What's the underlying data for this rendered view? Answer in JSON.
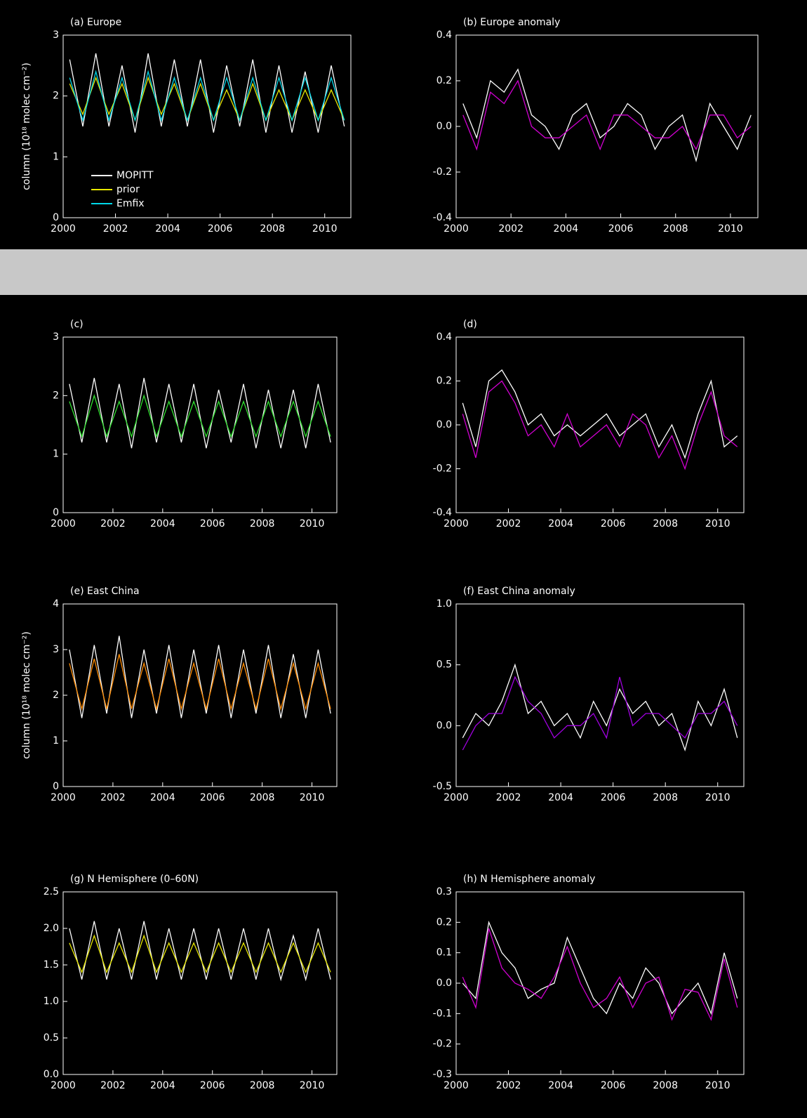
{
  "chart_data": [
    {
      "type": "line",
      "title": "(a) Europe",
      "ylabel": "column (10¹⁸ molec cm⁻²)",
      "xlim": [
        2000,
        2011
      ],
      "xticks": [
        2000,
        2002,
        2004,
        2006,
        2008,
        2010
      ],
      "ylim": [
        0,
        3
      ],
      "yticks": [
        0,
        1,
        2,
        3
      ],
      "x": [
        2000.25,
        2000.75,
        2001.25,
        2001.75,
        2002.25,
        2002.75,
        2003.25,
        2003.75,
        2004.25,
        2004.75,
        2005.25,
        2005.75,
        2006.25,
        2006.75,
        2007.25,
        2007.75,
        2008.25,
        2008.75,
        2009.25,
        2009.75,
        2010.25,
        2010.75
      ],
      "series": [
        {
          "name": "MOPITT",
          "color": "#ffffff",
          "values": [
            2.6,
            1.5,
            2.7,
            1.5,
            2.5,
            1.4,
            2.7,
            1.5,
            2.6,
            1.5,
            2.6,
            1.4,
            2.5,
            1.5,
            2.6,
            1.4,
            2.5,
            1.4,
            2.4,
            1.4,
            2.5,
            1.5
          ]
        },
        {
          "name": "prior",
          "color": "#e8e800",
          "values": [
            2.2,
            1.7,
            2.3,
            1.7,
            2.2,
            1.6,
            2.3,
            1.7,
            2.2,
            1.6,
            2.2,
            1.6,
            2.1,
            1.6,
            2.2,
            1.6,
            2.1,
            1.6,
            2.1,
            1.6,
            2.1,
            1.6
          ]
        },
        {
          "name": "Emfix",
          "color": "#00d8e8",
          "values": [
            2.3,
            1.6,
            2.4,
            1.6,
            2.3,
            1.6,
            2.4,
            1.6,
            2.3,
            1.6,
            2.3,
            1.6,
            2.3,
            1.6,
            2.3,
            1.6,
            2.3,
            1.6,
            2.3,
            1.6,
            2.3,
            1.6
          ]
        }
      ]
    },
    {
      "type": "line",
      "title": "(b) Europe anomaly",
      "xlim": [
        2000,
        2011
      ],
      "xticks": [
        2000,
        2002,
        2004,
        2006,
        2008,
        2010
      ],
      "ylim": [
        -0.4,
        0.4
      ],
      "yticks": [
        -0.4,
        -0.2,
        {
          "value": 0,
          "label": "0.0"
        },
        0.2,
        0.4
      ],
      "x": [
        2000.25,
        2000.75,
        2001.25,
        2001.75,
        2002.25,
        2002.75,
        2003.25,
        2003.75,
        2004.25,
        2004.75,
        2005.25,
        2005.75,
        2006.25,
        2006.75,
        2007.25,
        2007.75,
        2008.25,
        2008.75,
        2009.25,
        2009.75,
        2010.25,
        2010.75
      ],
      "series": [
        {
          "color": "#ffffff",
          "values": [
            0.1,
            -0.05,
            0.2,
            0.15,
            0.25,
            0.05,
            0.0,
            -0.1,
            0.05,
            0.1,
            -0.05,
            0.0,
            0.1,
            0.05,
            -0.1,
            0.0,
            0.05,
            -0.15,
            0.1,
            0.0,
            -0.1,
            0.05
          ]
        },
        {
          "color": "#d000d0",
          "values": [
            0.05,
            -0.1,
            0.15,
            0.1,
            0.2,
            0.0,
            -0.05,
            -0.05,
            0.0,
            0.05,
            -0.1,
            0.05,
            0.05,
            0.0,
            -0.05,
            -0.05,
            0.0,
            -0.1,
            0.05,
            0.05,
            -0.05,
            0.0
          ]
        }
      ]
    },
    {
      "type": "line",
      "title": "(c)",
      "xlim": [
        2000,
        2011
      ],
      "xticks": [
        2000,
        2002,
        2004,
        2006,
        2008,
        2010
      ],
      "ylim": [
        0,
        3
      ],
      "yticks": [
        0,
        1,
        2,
        3
      ],
      "x": [
        2000.25,
        2000.75,
        2001.25,
        2001.75,
        2002.25,
        2002.75,
        2003.25,
        2003.75,
        2004.25,
        2004.75,
        2005.25,
        2005.75,
        2006.25,
        2006.75,
        2007.25,
        2007.75,
        2008.25,
        2008.75,
        2009.25,
        2009.75,
        2010.25,
        2010.75
      ],
      "series": [
        {
          "color": "#ffffff",
          "values": [
            2.2,
            1.2,
            2.3,
            1.2,
            2.2,
            1.1,
            2.3,
            1.2,
            2.2,
            1.2,
            2.2,
            1.1,
            2.1,
            1.2,
            2.2,
            1.1,
            2.1,
            1.1,
            2.1,
            1.1,
            2.2,
            1.2
          ]
        },
        {
          "color": "#30e030",
          "values": [
            1.9,
            1.3,
            2.0,
            1.3,
            1.9,
            1.3,
            2.0,
            1.3,
            1.9,
            1.3,
            1.9,
            1.3,
            1.9,
            1.3,
            1.9,
            1.3,
            1.9,
            1.3,
            1.9,
            1.3,
            1.9,
            1.3
          ]
        }
      ]
    },
    {
      "type": "line",
      "title": "(d)",
      "xlim": [
        2000,
        2011
      ],
      "xticks": [
        2000,
        2002,
        2004,
        2006,
        2008,
        2010
      ],
      "ylim": [
        -0.4,
        0.4
      ],
      "yticks": [
        -0.4,
        -0.2,
        {
          "value": 0,
          "label": "0.0"
        },
        0.2,
        0.4
      ],
      "x": [
        2000.25,
        2000.75,
        2001.25,
        2001.75,
        2002.25,
        2002.75,
        2003.25,
        2003.75,
        2004.25,
        2004.75,
        2005.25,
        2005.75,
        2006.25,
        2006.75,
        2007.25,
        2007.75,
        2008.25,
        2008.75,
        2009.25,
        2009.75,
        2010.25,
        2010.75
      ],
      "series": [
        {
          "color": "#ffffff",
          "values": [
            0.1,
            -0.1,
            0.2,
            0.25,
            0.15,
            0.0,
            0.05,
            -0.05,
            0.0,
            -0.05,
            0.0,
            0.05,
            -0.05,
            0.0,
            0.05,
            -0.1,
            0.0,
            -0.15,
            0.05,
            0.2,
            -0.1,
            -0.05
          ]
        },
        {
          "color": "#d000d0",
          "values": [
            0.05,
            -0.15,
            0.15,
            0.2,
            0.1,
            -0.05,
            0.0,
            -0.1,
            0.05,
            -0.1,
            -0.05,
            0.0,
            -0.1,
            0.05,
            0.0,
            -0.15,
            -0.05,
            -0.2,
            0.0,
            0.15,
            -0.05,
            -0.1
          ]
        }
      ]
    },
    {
      "type": "line",
      "title": "(e) East China",
      "ylabel": "column (10¹⁸ molec cm⁻²)",
      "xlim": [
        2000,
        2011
      ],
      "xticks": [
        2000,
        2002,
        2004,
        2006,
        2008,
        2010
      ],
      "ylim": [
        0,
        4
      ],
      "yticks": [
        0,
        1,
        2,
        3,
        4
      ],
      "x": [
        2000.25,
        2000.75,
        2001.25,
        2001.75,
        2002.25,
        2002.75,
        2003.25,
        2003.75,
        2004.25,
        2004.75,
        2005.25,
        2005.75,
        2006.25,
        2006.75,
        2007.25,
        2007.75,
        2008.25,
        2008.75,
        2009.25,
        2009.75,
        2010.25,
        2010.75
      ],
      "series": [
        {
          "color": "#ffffff",
          "values": [
            3.0,
            1.5,
            3.1,
            1.6,
            3.3,
            1.5,
            3.0,
            1.6,
            3.1,
            1.5,
            3.0,
            1.6,
            3.1,
            1.5,
            3.0,
            1.6,
            3.1,
            1.5,
            2.9,
            1.5,
            3.0,
            1.6
          ]
        },
        {
          "color": "#ff8c00",
          "values": [
            2.7,
            1.7,
            2.8,
            1.7,
            2.9,
            1.7,
            2.7,
            1.7,
            2.8,
            1.7,
            2.7,
            1.7,
            2.8,
            1.7,
            2.7,
            1.7,
            2.8,
            1.7,
            2.7,
            1.7,
            2.7,
            1.7
          ]
        }
      ]
    },
    {
      "type": "line",
      "title": "(f) East China anomaly",
      "xlim": [
        2000,
        2011
      ],
      "xticks": [
        2000,
        2002,
        2004,
        2006,
        2008,
        2010
      ],
      "ylim": [
        -0.5,
        1.0
      ],
      "yticks": [
        -0.5,
        {
          "value": 0,
          "label": "0.0"
        },
        0.5,
        {
          "value": 1,
          "label": "1.0"
        }
      ],
      "x": [
        2000.25,
        2000.75,
        2001.25,
        2001.75,
        2002.25,
        2002.75,
        2003.25,
        2003.75,
        2004.25,
        2004.75,
        2005.25,
        2005.75,
        2006.25,
        2006.75,
        2007.25,
        2007.75,
        2008.25,
        2008.75,
        2009.25,
        2009.75,
        2010.25,
        2010.75
      ],
      "series": [
        {
          "color": "#ffffff",
          "values": [
            -0.1,
            0.1,
            0.0,
            0.2,
            0.5,
            0.1,
            0.2,
            0.0,
            0.1,
            -0.1,
            0.2,
            0.0,
            0.3,
            0.1,
            0.2,
            0.0,
            0.1,
            -0.2,
            0.2,
            0.0,
            0.3,
            -0.1
          ]
        },
        {
          "color": "#a000e0",
          "values": [
            -0.2,
            0.0,
            0.1,
            0.1,
            0.4,
            0.2,
            0.1,
            -0.1,
            0.0,
            0.0,
            0.1,
            -0.1,
            0.4,
            0.0,
            0.1,
            0.1,
            0.0,
            -0.1,
            0.1,
            0.1,
            0.2,
            0.0
          ]
        }
      ]
    },
    {
      "type": "line",
      "title": "(g) N Hemisphere (0–60N)",
      "xlim": [
        2000,
        2011
      ],
      "xticks": [
        2000,
        2002,
        2004,
        2006,
        2008,
        2010
      ],
      "ylim": [
        0,
        2.5
      ],
      "yticks": [
        {
          "value": 0,
          "label": "0.0"
        },
        0.5,
        {
          "value": 1,
          "label": "1.0"
        },
        1.5,
        {
          "value": 2,
          "label": "2.0"
        },
        2.5
      ],
      "x": [
        2000.25,
        2000.75,
        2001.25,
        2001.75,
        2002.25,
        2002.75,
        2003.25,
        2003.75,
        2004.25,
        2004.75,
        2005.25,
        2005.75,
        2006.25,
        2006.75,
        2007.25,
        2007.75,
        2008.25,
        2008.75,
        2009.25,
        2009.75,
        2010.25,
        2010.75
      ],
      "series": [
        {
          "color": "#ffffff",
          "values": [
            2.0,
            1.3,
            2.1,
            1.3,
            2.0,
            1.3,
            2.1,
            1.3,
            2.0,
            1.3,
            2.0,
            1.3,
            2.0,
            1.3,
            2.0,
            1.3,
            2.0,
            1.3,
            1.9,
            1.3,
            2.0,
            1.3
          ]
        },
        {
          "color": "#e8e800",
          "values": [
            1.8,
            1.4,
            1.9,
            1.4,
            1.8,
            1.4,
            1.9,
            1.4,
            1.8,
            1.4,
            1.8,
            1.4,
            1.8,
            1.4,
            1.8,
            1.4,
            1.8,
            1.4,
            1.8,
            1.4,
            1.8,
            1.4
          ]
        }
      ]
    },
    {
      "type": "line",
      "title": "(h) N Hemisphere anomaly",
      "xlim": [
        2000,
        2011
      ],
      "xticks": [
        2000,
        2002,
        2004,
        2006,
        2008,
        2010
      ],
      "ylim": [
        -0.3,
        0.3
      ],
      "yticks": [
        -0.3,
        -0.2,
        -0.1,
        {
          "value": 0,
          "label": "0.0"
        },
        0.1,
        0.2,
        0.3
      ],
      "x": [
        2000.25,
        2000.75,
        2001.25,
        2001.75,
        2002.25,
        2002.75,
        2003.25,
        2003.75,
        2004.25,
        2004.75,
        2005.25,
        2005.75,
        2006.25,
        2006.75,
        2007.25,
        2007.75,
        2008.25,
        2008.75,
        2009.25,
        2009.75,
        2010.25,
        2010.75
      ],
      "series": [
        {
          "color": "#ffffff",
          "values": [
            0.0,
            -0.05,
            0.2,
            0.1,
            0.05,
            -0.05,
            -0.02,
            0.0,
            0.15,
            0.05,
            -0.05,
            -0.1,
            0.0,
            -0.05,
            0.05,
            0.0,
            -0.1,
            -0.05,
            0.0,
            -0.1,
            0.1,
            -0.05
          ]
        },
        {
          "color": "#d000d0",
          "values": [
            0.02,
            -0.08,
            0.18,
            0.05,
            0.0,
            -0.02,
            -0.05,
            0.02,
            0.12,
            0.0,
            -0.08,
            -0.05,
            0.02,
            -0.08,
            0.0,
            0.02,
            -0.12,
            -0.02,
            -0.03,
            -0.12,
            0.08,
            -0.08
          ]
        }
      ]
    }
  ]
}
